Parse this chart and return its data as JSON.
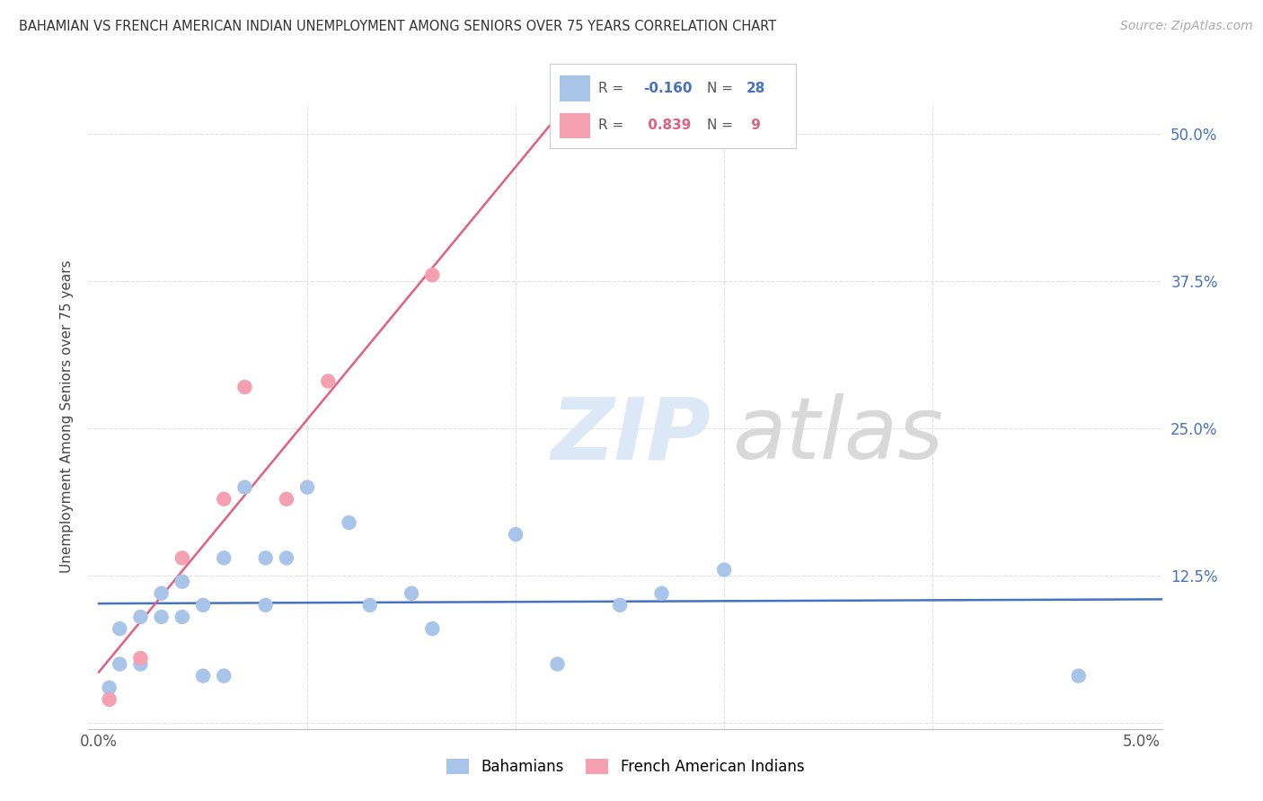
{
  "title": "BAHAMIAN VS FRENCH AMERICAN INDIAN UNEMPLOYMENT AMONG SENIORS OVER 75 YEARS CORRELATION CHART",
  "source": "Source: ZipAtlas.com",
  "ylabel": "Unemployment Among Seniors over 75 years",
  "xlim": [
    -0.0005,
    0.051
  ],
  "ylim": [
    -0.005,
    0.525
  ],
  "background_color": "#ffffff",
  "bahamian_color": "#a8c4e8",
  "french_color": "#f4a0b0",
  "bahamian_line_color": "#4472c4",
  "french_line_color": "#e06080",
  "bahamian_R": -0.16,
  "bahamian_N": 28,
  "french_R": 0.839,
  "french_N": 9,
  "grid_color": "#e0e0e0",
  "y_tick_color": "#4472c4",
  "bahamian_x": [
    0.0005,
    0.001,
    0.001,
    0.002,
    0.002,
    0.003,
    0.003,
    0.004,
    0.004,
    0.005,
    0.005,
    0.006,
    0.006,
    0.007,
    0.008,
    0.008,
    0.009,
    0.01,
    0.012,
    0.013,
    0.015,
    0.016,
    0.02,
    0.022,
    0.025,
    0.027,
    0.03,
    0.047
  ],
  "bahamian_y": [
    0.03,
    0.05,
    0.08,
    0.05,
    0.09,
    0.09,
    0.11,
    0.09,
    0.12,
    0.04,
    0.1,
    0.04,
    0.14,
    0.2,
    0.1,
    0.14,
    0.14,
    0.2,
    0.17,
    0.1,
    0.11,
    0.08,
    0.16,
    0.05,
    0.1,
    0.11,
    0.13,
    0.04
  ],
  "french_x": [
    0.0005,
    0.002,
    0.004,
    0.006,
    0.007,
    0.009,
    0.011,
    0.016,
    0.022
  ],
  "french_y": [
    0.02,
    0.055,
    0.14,
    0.19,
    0.285,
    0.19,
    0.29,
    0.38,
    0.5
  ]
}
